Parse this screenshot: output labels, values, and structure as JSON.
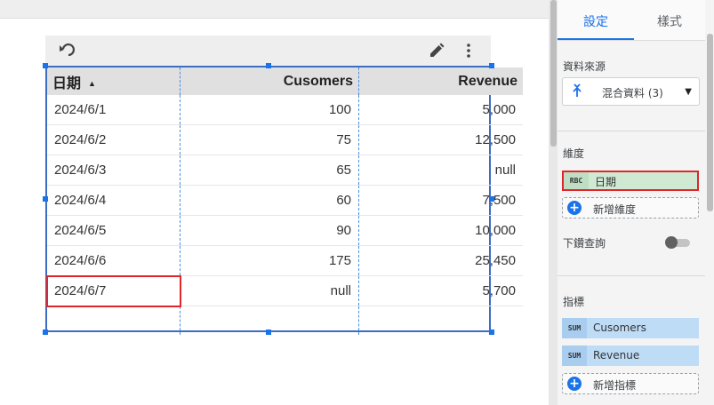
{
  "toolbar": {
    "undo_icon": "undo-icon",
    "edit_icon": "pencil-icon",
    "more_icon": "more-vert-icon"
  },
  "table": {
    "columns": [
      {
        "label": "日期",
        "sort": "ascending"
      },
      {
        "label": "Cusomers"
      },
      {
        "label": "Revenue"
      }
    ],
    "rows": [
      [
        "2024/6/1",
        "100",
        "5,000"
      ],
      [
        "2024/6/2",
        "75",
        "12,500"
      ],
      [
        "2024/6/3",
        "65",
        "null"
      ],
      [
        "2024/6/4",
        "60",
        "7,500"
      ],
      [
        "2024/6/5",
        "90",
        "10,000"
      ],
      [
        "2024/6/6",
        "175",
        "25,450"
      ],
      [
        "2024/6/7",
        "null",
        "5,700"
      ]
    ],
    "highlighted_cell": "2024/6/7"
  },
  "panel": {
    "tabs": {
      "settings": "設定",
      "style": "樣式",
      "active": "settings"
    },
    "data_source": {
      "title": "資料來源",
      "value": "混合資料 (3)",
      "icon": "blend-icon"
    },
    "dimension": {
      "title": "維度",
      "chip_type": "RBC",
      "chip_label": "日期",
      "add_label": "新增維度"
    },
    "drilldown": {
      "label": "下鑽查詢",
      "enabled": false
    },
    "metrics": {
      "title": "指標",
      "items": [
        {
          "agg": "SUM",
          "label": "Cusomers"
        },
        {
          "agg": "SUM",
          "label": "Revenue"
        }
      ],
      "add_label": "新增指標"
    }
  },
  "colors": {
    "accent": "#1a73e8",
    "selection": "#3b6ec2",
    "highlight": "#e0262b",
    "dimension_chip": "#cfe9d3",
    "metric_chip": "#bfdcf7"
  }
}
